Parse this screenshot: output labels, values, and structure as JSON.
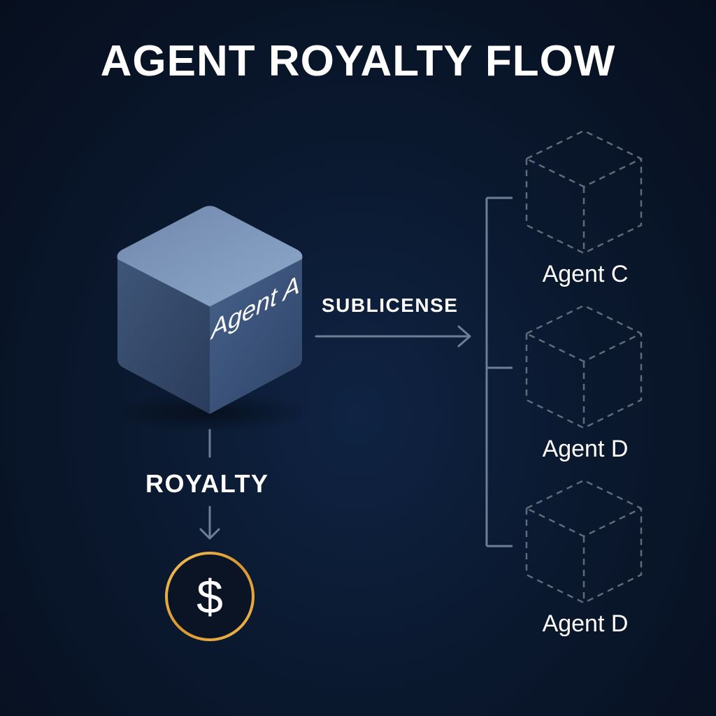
{
  "title": "AGENT ROYALTY FLOW",
  "source_agent": {
    "label": "Agent A"
  },
  "flows": {
    "sublicense_label": "SUBLICENSE",
    "royalty_label": "ROYALTY"
  },
  "payout": {
    "symbol": "$"
  },
  "sublicensees": [
    {
      "label": "Agent C"
    },
    {
      "label": "Agent D"
    },
    {
      "label": "Agent D"
    }
  ],
  "colors": {
    "background": "#0b1a31",
    "cube_top": "#7f9bc2",
    "cube_front": "#3c5479",
    "cube_side": "#2f4466",
    "connector": "#6c7f97",
    "dashed_cube": "#5f6b79",
    "coin_ring": "#e0a63a",
    "text": "#ffffff"
  }
}
